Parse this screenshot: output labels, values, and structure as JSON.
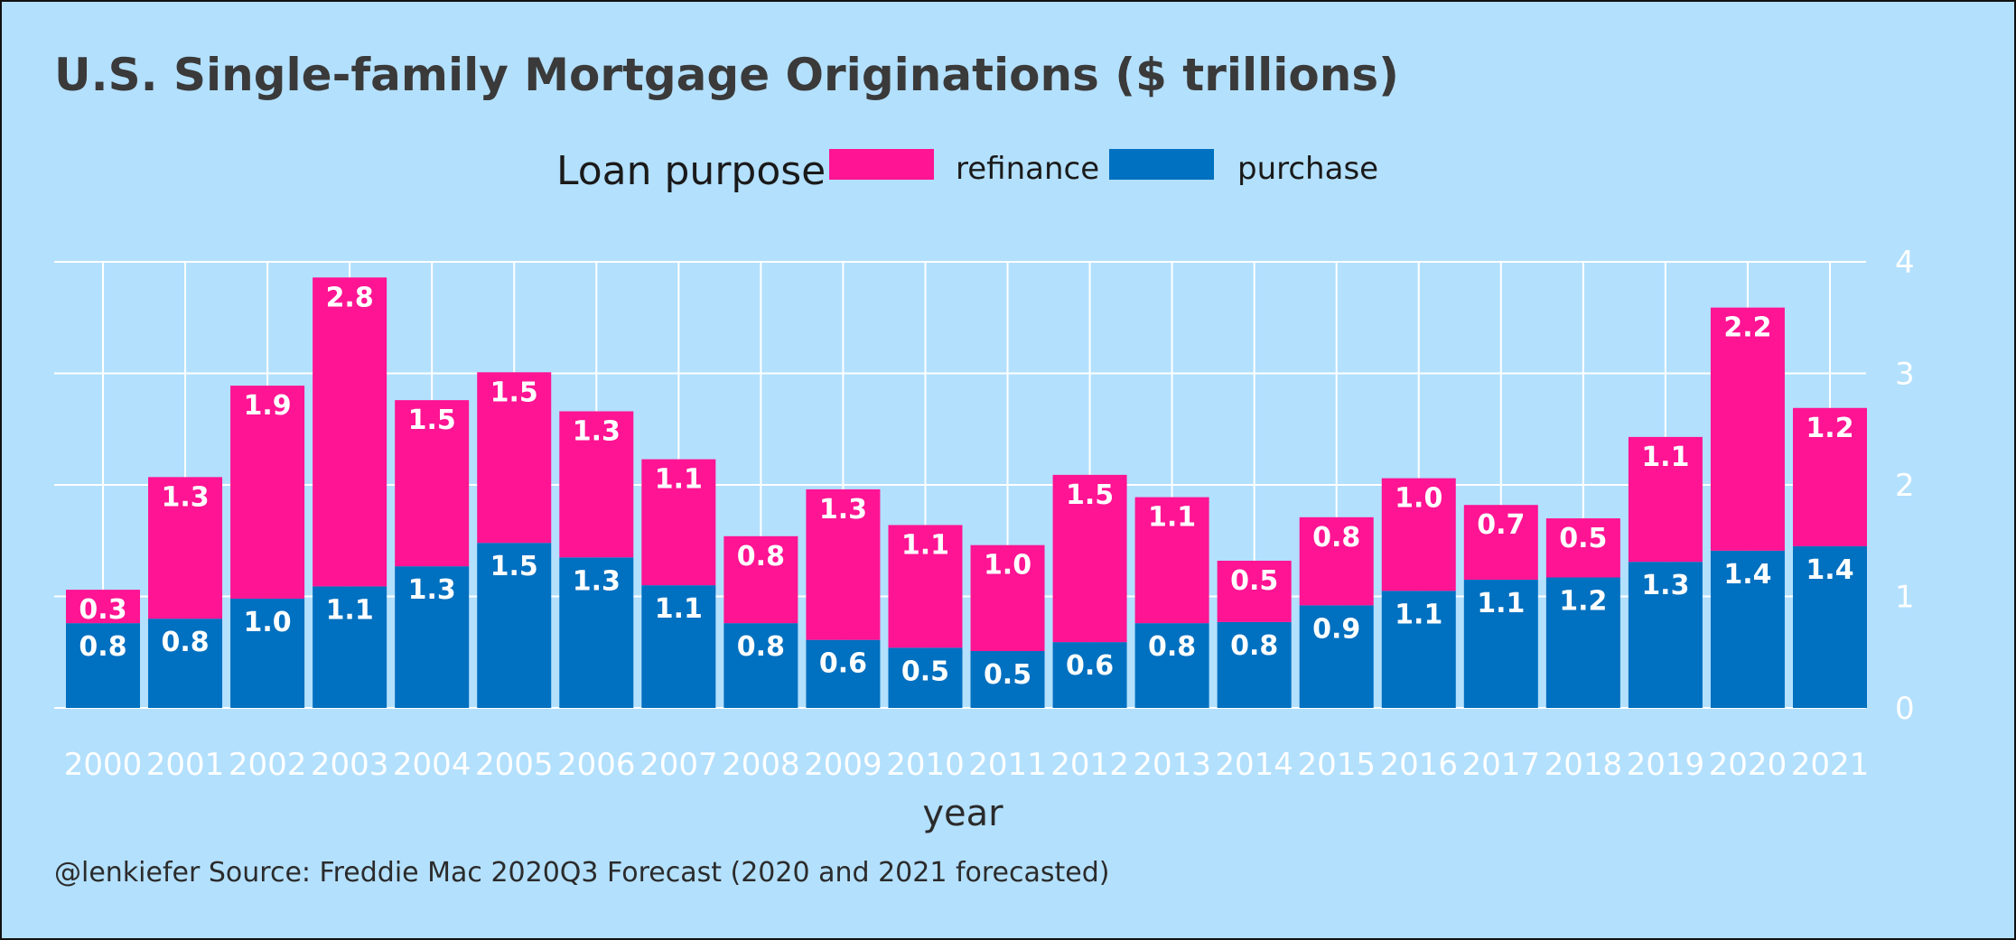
{
  "chart_data": {
    "type": "bar",
    "stacked": true,
    "title": "U.S. Single-family Mortgage Originations ($ trillions)",
    "xlabel": "year",
    "ylabel": "",
    "caption": "@lenkiefer Source: Freddie Mac 2020Q3 Forecast (2020 and 2021 forecasted)",
    "legend": {
      "title": "Loan purpose",
      "placement": "top",
      "entries": [
        {
          "label": "refinance",
          "color": "#ff1493"
        },
        {
          "label": "purchase",
          "color": "#0070c0"
        }
      ]
    },
    "categories": [
      "2000",
      "2001",
      "2002",
      "2003",
      "2004",
      "2005",
      "2006",
      "2007",
      "2008",
      "2009",
      "2010",
      "2011",
      "2012",
      "2013",
      "2014",
      "2015",
      "2016",
      "2017",
      "2018",
      "2019",
      "2020",
      "2021"
    ],
    "series": [
      {
        "name": "purchase",
        "color": "#0070c0",
        "values": [
          0.76,
          0.8,
          0.98,
          1.09,
          1.27,
          1.48,
          1.35,
          1.1,
          0.76,
          0.61,
          0.54,
          0.51,
          0.59,
          0.76,
          0.77,
          0.92,
          1.05,
          1.15,
          1.17,
          1.31,
          1.41,
          1.45
        ],
        "labels": [
          "0.8",
          "0.8",
          "1.0",
          "1.1",
          "1.3",
          "1.5",
          "1.3",
          "1.1",
          "0.8",
          "0.6",
          "0.5",
          "0.5",
          "0.6",
          "0.8",
          "0.8",
          "0.9",
          "1.1",
          "1.1",
          "1.2",
          "1.3",
          "1.4",
          "1.4"
        ]
      },
      {
        "name": "refinance",
        "color": "#ff1493",
        "values": [
          0.3,
          1.27,
          1.91,
          2.77,
          1.49,
          1.53,
          1.31,
          1.13,
          0.78,
          1.35,
          1.1,
          0.95,
          1.5,
          1.13,
          0.55,
          0.79,
          1.01,
          0.67,
          0.53,
          1.12,
          2.18,
          1.24
        ],
        "labels": [
          "0.3",
          "1.3",
          "1.9",
          "2.8",
          "1.5",
          "1.5",
          "1.3",
          "1.1",
          "0.8",
          "1.3",
          "1.1",
          "1.0",
          "1.5",
          "1.1",
          "0.5",
          "0.8",
          "1.0",
          "0.7",
          "0.5",
          "1.1",
          "2.2",
          "1.2"
        ]
      }
    ],
    "ylim": [
      0,
      4
    ],
    "yticks": [
      "0",
      "1",
      "2",
      "3",
      "4"
    ],
    "y_axis_position": "right",
    "grid": true,
    "colors": {
      "background": "#b3e0fd",
      "grid": "#ffffff",
      "refinance": "#ff1493",
      "purchase": "#0070c0"
    }
  }
}
